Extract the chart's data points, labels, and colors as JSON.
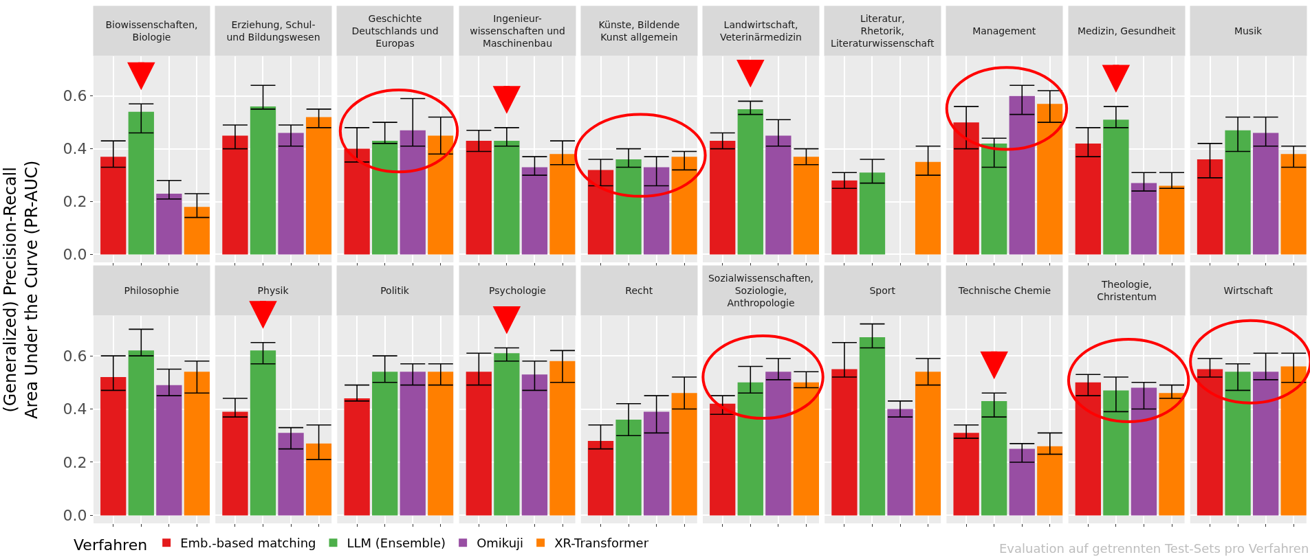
{
  "chart_data": [
    {
      "type": "bar",
      "ylabel": "(Generalized) Precision-Recall\nArea Under the Curve (PR-AUC)",
      "categories": [
        "Biowissenschaften,\nBiologie",
        "Erziehung, Schul-\nund Bildungswesen",
        "Geschichte\nDeutschlands und\nEuropas",
        "Ingenieur-\nwissenschaften und\nMaschinenbau",
        "Künste, Bildende\nKunst allgemein",
        "Landwirtschaft,\nVeterinärmedizin",
        "Literatur,\nRhetorik,\nLiteraturwissenschaft",
        "Management",
        "Medizin, Gesundheit",
        "Musik"
      ],
      "series": [
        {
          "color": "#e41a1c",
          "values": [
            0.37,
            0.45,
            0.4,
            0.43,
            0.32,
            0.43,
            0.28,
            0.5,
            0.42,
            0.36
          ],
          "errors": [
            [
              0.33,
              0.43
            ],
            [
              0.4,
              0.49
            ],
            [
              0.35,
              0.48
            ],
            [
              0.39,
              0.47
            ],
            [
              0.26,
              0.36
            ],
            [
              0.4,
              0.46
            ],
            [
              0.25,
              0.31
            ],
            [
              0.4,
              0.56
            ],
            [
              0.37,
              0.48
            ],
            [
              0.29,
              0.42
            ]
          ]
        },
        {
          "color": "#4daf4a",
          "values": [
            0.54,
            0.56,
            0.43,
            0.43,
            0.36,
            0.55,
            0.31,
            0.42,
            0.51,
            0.47
          ],
          "errors": [
            [
              0.46,
              0.57
            ],
            [
              0.55,
              0.64
            ],
            [
              0.42,
              0.5
            ],
            [
              0.41,
              0.48
            ],
            [
              0.33,
              0.4
            ],
            [
              0.53,
              0.58
            ],
            [
              0.27,
              0.36
            ],
            [
              0.33,
              0.44
            ],
            [
              0.48,
              0.56
            ],
            [
              0.39,
              0.52
            ]
          ]
        },
        {
          "color": "#984ea3",
          "values": [
            0.23,
            0.46,
            0.47,
            0.33,
            0.33,
            0.45,
            null,
            0.6,
            0.27,
            0.46
          ],
          "errors": [
            [
              0.21,
              0.28
            ],
            [
              0.41,
              0.49
            ],
            [
              0.41,
              0.59
            ],
            [
              0.3,
              0.37
            ],
            [
              0.26,
              0.37
            ],
            [
              0.41,
              0.51
            ],
            null,
            [
              0.53,
              0.64
            ],
            [
              0.24,
              0.31
            ],
            [
              0.41,
              0.52
            ]
          ]
        },
        {
          "color": "#ff7f00",
          "values": [
            0.18,
            0.52,
            0.45,
            0.38,
            0.37,
            0.37,
            0.35,
            0.57,
            0.26,
            0.38
          ],
          "errors": [
            [
              0.14,
              0.23
            ],
            [
              0.48,
              0.55
            ],
            [
              0.38,
              0.52
            ],
            [
              0.34,
              0.43
            ],
            [
              0.32,
              0.39
            ],
            [
              0.34,
              0.4
            ],
            [
              0.3,
              0.41
            ],
            [
              0.5,
              0.62
            ],
            [
              0.25,
              0.31
            ],
            [
              0.33,
              0.41
            ]
          ]
        }
      ],
      "ylim": [
        -0.03,
        0.75
      ],
      "yticks": [
        {
          "value": 0,
          "label": "0.0"
        },
        {
          "value": 0.2,
          "label": "0.2"
        },
        {
          "value": 0.4,
          "label": "0.4"
        },
        {
          "value": 0.6,
          "label": "0.6"
        }
      ],
      "grid": true
    },
    {
      "type": "bar",
      "legend": "bottom",
      "legend_title": "Verfahren",
      "annotations": [
        "Evaluation auf getrennten Test-Sets pro Verfahren"
      ],
      "categories": [
        "Philosophie",
        "Physik",
        "Politik",
        "Psychologie",
        "Recht",
        "Sozialwissenschaften,\nSoziologie,\nAnthropologie",
        "Sport",
        "Technische Chemie",
        "Theologie,\nChristentum",
        "Wirtschaft"
      ],
      "series": [
        {
          "name": "Emb.-based matching",
          "color": "#e41a1c",
          "values": [
            0.52,
            0.39,
            0.44,
            0.54,
            0.28,
            0.42,
            0.55,
            0.31,
            0.5,
            0.55
          ],
          "errors": [
            [
              0.47,
              0.6
            ],
            [
              0.37,
              0.44
            ],
            [
              0.43,
              0.49
            ],
            [
              0.49,
              0.61
            ],
            [
              0.25,
              0.34
            ],
            [
              0.38,
              0.45
            ],
            [
              0.52,
              0.65
            ],
            [
              0.29,
              0.34
            ],
            [
              0.45,
              0.53
            ],
            [
              0.52,
              0.59
            ]
          ]
        },
        {
          "name": "LLM (Ensemble)",
          "color": "#4daf4a",
          "values": [
            0.62,
            0.62,
            0.54,
            0.61,
            0.36,
            0.5,
            0.67,
            0.43,
            0.47,
            0.54
          ],
          "errors": [
            [
              0.6,
              0.7
            ],
            [
              0.57,
              0.65
            ],
            [
              0.5,
              0.6
            ],
            [
              0.58,
              0.63
            ],
            [
              0.3,
              0.42
            ],
            [
              0.46,
              0.56
            ],
            [
              0.63,
              0.72
            ],
            [
              0.37,
              0.46
            ],
            [
              0.39,
              0.52
            ],
            [
              0.47,
              0.57
            ]
          ]
        },
        {
          "name": "Omikuji",
          "color": "#984ea3",
          "values": [
            0.49,
            0.31,
            0.54,
            0.53,
            0.39,
            0.54,
            0.4,
            0.25,
            0.48,
            0.54
          ],
          "errors": [
            [
              0.45,
              0.55
            ],
            [
              0.25,
              0.33
            ],
            [
              0.49,
              0.57
            ],
            [
              0.47,
              0.58
            ],
            [
              0.31,
              0.45
            ],
            [
              0.51,
              0.59
            ],
            [
              0.37,
              0.43
            ],
            [
              0.2,
              0.27
            ],
            [
              0.4,
              0.5
            ],
            [
              0.51,
              0.61
            ]
          ]
        },
        {
          "name": "XR-Transformer",
          "color": "#ff7f00",
          "values": [
            0.54,
            0.27,
            0.54,
            0.58,
            0.46,
            0.5,
            0.54,
            0.26,
            0.46,
            0.56
          ],
          "errors": [
            [
              0.46,
              0.58
            ],
            [
              0.21,
              0.34
            ],
            [
              0.49,
              0.57
            ],
            [
              0.5,
              0.62
            ],
            [
              0.4,
              0.52
            ],
            [
              0.48,
              0.54
            ],
            [
              0.49,
              0.59
            ],
            [
              0.23,
              0.31
            ],
            [
              0.44,
              0.49
            ],
            [
              0.5,
              0.61
            ]
          ]
        }
      ],
      "ylim": [
        -0.03,
        0.75
      ],
      "yticks": [
        {
          "value": 0,
          "label": "0.0"
        },
        {
          "value": 0.2,
          "label": "0.2"
        },
        {
          "value": 0.4,
          "label": "0.4"
        },
        {
          "value": 0.6,
          "label": "0.6"
        }
      ],
      "grid": true
    }
  ]
}
